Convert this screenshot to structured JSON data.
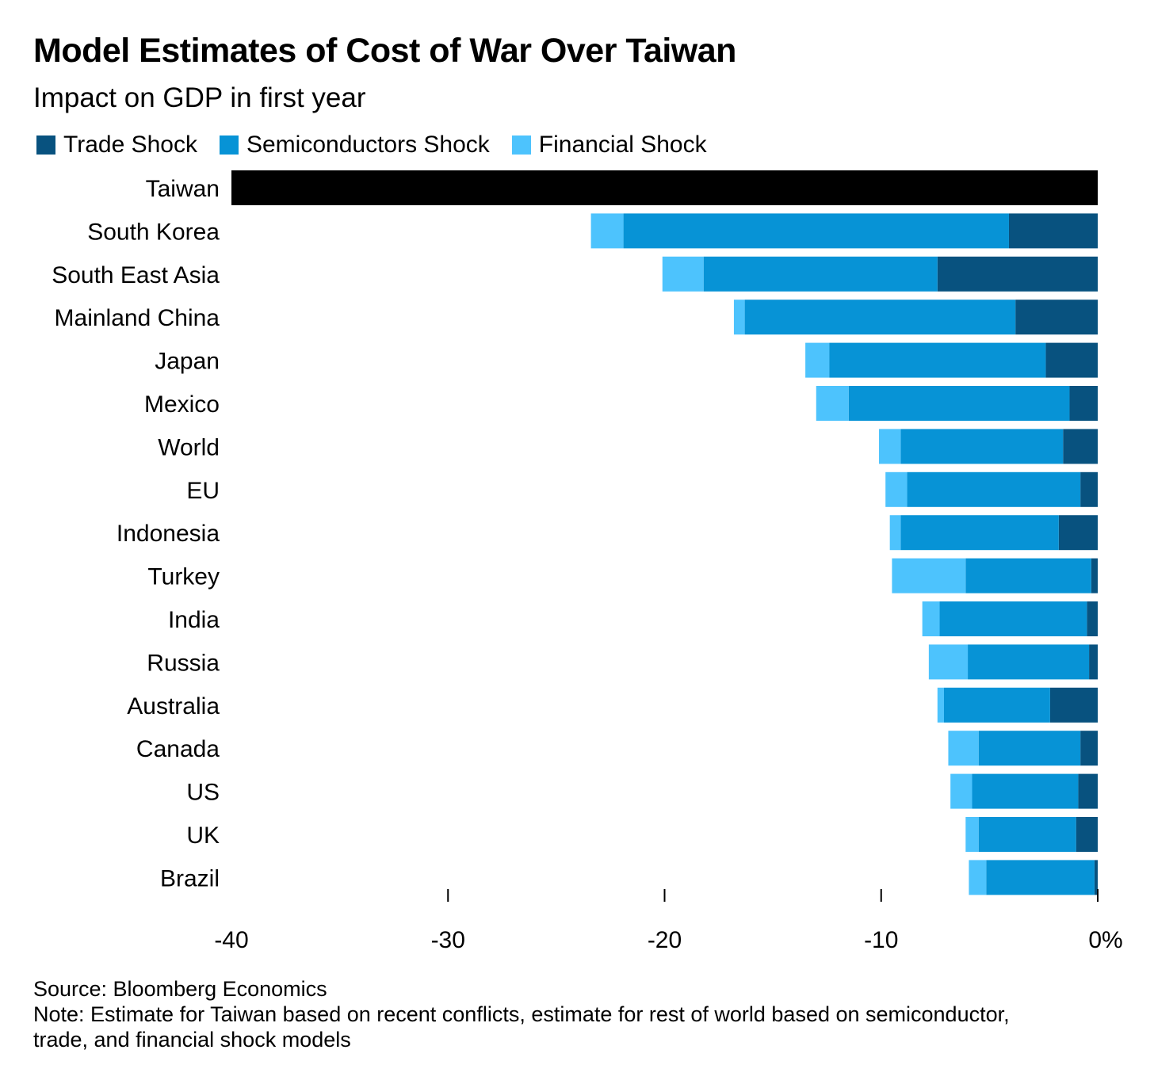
{
  "title": "Model Estimates of Cost of War Over Taiwan",
  "subtitle": "Impact on GDP in first year",
  "source": "Source: Bloomberg Economics",
  "note": "Note: Estimate for Taiwan based on recent conflicts, estimate for rest of world based on semiconductor, trade, and financial shock models",
  "chart_data": {
    "type": "bar",
    "orientation": "horizontal-stacked",
    "title": "Model Estimates of Cost of War Over Taiwan",
    "subtitle": "Impact on GDP in first year",
    "xlabel": "",
    "ylabel": "",
    "xlim": [
      -40,
      0
    ],
    "x_ticks": [
      -40,
      -30,
      -20,
      -10,
      0
    ],
    "x_tick_labels": [
      "-40",
      "-30",
      "-20",
      "-10",
      "0%"
    ],
    "legend_position": "top-left",
    "categories": [
      "Taiwan",
      "South Korea",
      "South East Asia",
      "Mainland China",
      "Japan",
      "Mexico",
      "World",
      "EU",
      "Indonesia",
      "Turkey",
      "India",
      "Russia",
      "Australia",
      "Canada",
      "US",
      "UK",
      "Brazil"
    ],
    "total_only": {
      "Taiwan": -40.0,
      "color": "#000000"
    },
    "series": [
      {
        "name": "Trade Shock",
        "color": "#08527f",
        "values": [
          0,
          -4.1,
          -7.4,
          -3.8,
          -2.4,
          -1.3,
          -1.6,
          -0.8,
          -1.8,
          -0.3,
          -0.5,
          -0.4,
          -2.2,
          -0.8,
          -0.9,
          -1.0,
          -0.15
        ]
      },
      {
        "name": "Semiconductors Shock",
        "color": "#0793d6",
        "values": [
          0,
          -17.8,
          -10.8,
          -12.5,
          -10.0,
          -10.2,
          -7.5,
          -8.0,
          -7.3,
          -5.8,
          -6.8,
          -5.6,
          -4.9,
          -4.7,
          -4.9,
          -4.5,
          -5.0
        ]
      },
      {
        "name": "Financial Shock",
        "color": "#4dc3fd",
        "values": [
          0,
          -1.5,
          -1.9,
          -0.5,
          -1.1,
          -1.5,
          -1.0,
          -1.0,
          -0.5,
          -3.4,
          -0.8,
          -1.8,
          -0.3,
          -1.4,
          -1.0,
          -0.6,
          -0.8
        ]
      }
    ]
  }
}
